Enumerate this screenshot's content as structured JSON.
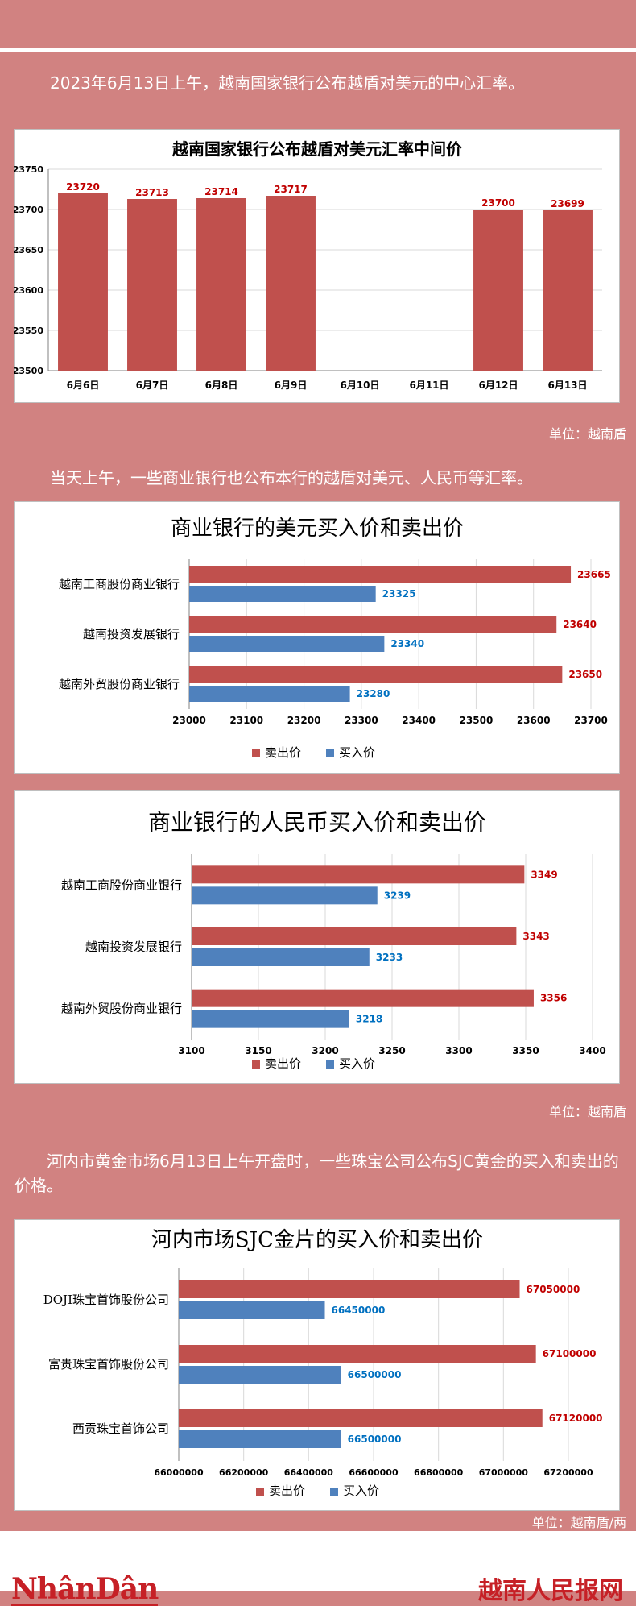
{
  "texts": {
    "intro1": "2023年6月13日上午，越南国家银行公布越盾对美元的中心汇率。",
    "unit1": "单位：越南盾",
    "intro2": "当天上午，一些商业银行也公布本行的越盾对美元、人民币等汇率。",
    "unit2": "单位：越南盾",
    "intro3": "河内市黄金市场6月13日上午开盘时，一些珠宝公司公布SJC黄金的买入和卖出的价格。",
    "unit3": "单位：越南盾/两",
    "logo_left": "NhânDân",
    "logo_right": "越南人民报网"
  },
  "colors": {
    "sell": "#c0504d",
    "buy": "#4f81bd",
    "sell_label": "#c00000",
    "buy_label": "#0070c0",
    "background": "#d18281"
  },
  "chart_data": [
    {
      "type": "bar",
      "title": "越南国家银行公布越盾对美元汇率中间价",
      "categories": [
        "6月6日",
        "6月7日",
        "6月8日",
        "6月9日",
        "6月10日",
        "6月11日",
        "6月12日",
        "6月13日"
      ],
      "values": [
        23720,
        23713,
        23714,
        23717,
        null,
        null,
        23700,
        23699
      ],
      "ylim": [
        23500,
        23750
      ],
      "yticks": [
        23500,
        23550,
        23600,
        23650,
        23700,
        23750
      ],
      "grid": true
    },
    {
      "type": "bar",
      "orientation": "horizontal",
      "title": "商业银行的美元买入价和卖出价",
      "categories": [
        "越南工商股份商业银行",
        "越南投资发展银行",
        "越南外贸股份商业银行"
      ],
      "series": [
        {
          "name": "卖出价",
          "values": [
            23665,
            23640,
            23650
          ]
        },
        {
          "name": "买入价",
          "values": [
            23325,
            23340,
            23280
          ]
        }
      ],
      "xlim": [
        23000,
        23700
      ],
      "xticks": [
        23000,
        23100,
        23200,
        23300,
        23400,
        23500,
        23600,
        23700
      ],
      "legend": "bottom",
      "grid": true
    },
    {
      "type": "bar",
      "orientation": "horizontal",
      "title": "商业银行的人民币买入价和卖出价",
      "categories": [
        "越南工商股份商业银行",
        "越南投资发展银行",
        "越南外贸股份商业银行"
      ],
      "series": [
        {
          "name": "卖出价",
          "values": [
            3349,
            3343,
            3356
          ]
        },
        {
          "name": "买入价",
          "values": [
            3239,
            3233,
            3218
          ]
        }
      ],
      "xlim": [
        3100,
        3400
      ],
      "xticks": [
        3100,
        3150,
        3200,
        3250,
        3300,
        3350,
        3400
      ],
      "legend": "bottom",
      "grid": true
    },
    {
      "type": "bar",
      "orientation": "horizontal",
      "title": "河内市场SJC金片的买入价和卖出价",
      "categories": [
        "DOJI珠宝首饰股份公司",
        "富贵珠宝首饰股份公司",
        "西贡珠宝首饰公司"
      ],
      "series": [
        {
          "name": "卖出价",
          "values": [
            67050000,
            67100000,
            67120000
          ]
        },
        {
          "name": "买入价",
          "values": [
            66450000,
            66500000,
            66500000
          ]
        }
      ],
      "xlim": [
        66000000,
        67200000
      ],
      "xticks": [
        66000000,
        66200000,
        66400000,
        66600000,
        66800000,
        67000000,
        67200000
      ],
      "legend": "bottom",
      "grid": true
    }
  ]
}
